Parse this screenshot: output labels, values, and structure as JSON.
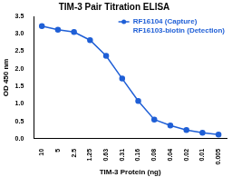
{
  "chart_data": {
    "type": "line",
    "title": "TIM-3 Pair Titration ELISA",
    "x_label": "TIM-3 Protein (ng)",
    "y_label": "OD 450 nm",
    "categories": [
      "10",
      "5",
      "2.5",
      "1.25",
      "0.63",
      "0.31",
      "0.16",
      "0.08",
      "0.04",
      "0.02",
      "0.01",
      "0.005"
    ],
    "series": [
      {
        "name": "RF16104 (Capture)",
        "color": "#1f5fd6",
        "marker": "circle",
        "values": [
          3.22,
          3.12,
          3.05,
          2.82,
          2.37,
          1.72,
          1.08,
          0.55,
          0.38,
          0.25,
          0.17,
          0.12
        ]
      }
    ],
    "annotations": [
      "RF16103-biotin (Detection)"
    ],
    "ylim": [
      0,
      3.5
    ],
    "yticks": [
      {
        "value": 0,
        "label": "0.0"
      },
      {
        "value": 0.5,
        "label": "0.5"
      },
      {
        "value": 1,
        "label": "1.0"
      },
      {
        "value": 1.5,
        "label": "1.5"
      },
      {
        "value": 2,
        "label": "2.0"
      },
      {
        "value": 2.5,
        "label": "2.5"
      },
      {
        "value": 3,
        "label": "3.0"
      },
      {
        "value": 3.5,
        "label": "3.5"
      }
    ],
    "grid": false,
    "legend": "upper right"
  }
}
